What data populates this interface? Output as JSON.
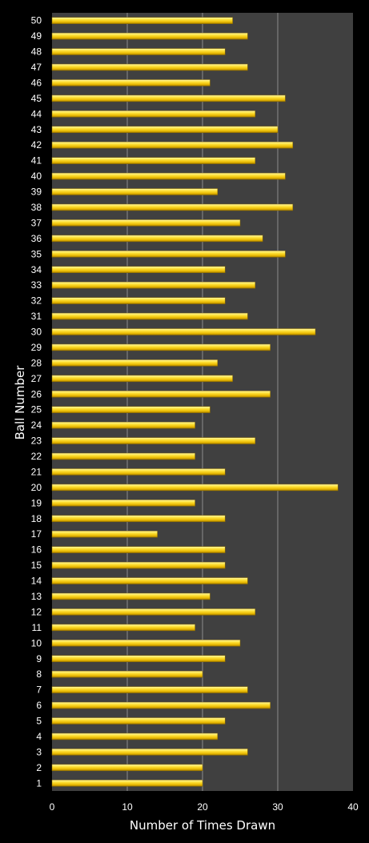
{
  "chart_data": {
    "type": "bar",
    "orientation": "horizontal",
    "title": "",
    "xlabel": "Number of Times Drawn",
    "ylabel": "Ball Number",
    "xlim": [
      0,
      40
    ],
    "x_ticks": [
      "0",
      "10",
      "20",
      "30",
      "40"
    ],
    "grid": "vertical",
    "colors": {
      "background": "#000000",
      "plot_area": "#404040",
      "bar": "#f2c200",
      "bar_highlight": "#fff27a",
      "grid": "#8c8c8c",
      "text": "#ffffff"
    },
    "categories": [
      "1",
      "2",
      "3",
      "4",
      "5",
      "6",
      "7",
      "8",
      "9",
      "10",
      "11",
      "12",
      "13",
      "14",
      "15",
      "16",
      "17",
      "18",
      "19",
      "20",
      "21",
      "22",
      "23",
      "24",
      "25",
      "26",
      "27",
      "28",
      "29",
      "30",
      "31",
      "32",
      "33",
      "34",
      "35",
      "36",
      "37",
      "38",
      "39",
      "40",
      "41",
      "42",
      "43",
      "44",
      "45",
      "46",
      "47",
      "48",
      "49",
      "50"
    ],
    "values": [
      20,
      20,
      26,
      22,
      23,
      29,
      26,
      20,
      23,
      25,
      19,
      27,
      21,
      26,
      23,
      23,
      14,
      23,
      19,
      38,
      23,
      19,
      27,
      19,
      21,
      29,
      24,
      22,
      29,
      35,
      26,
      23,
      27,
      23,
      31,
      28,
      25,
      32,
      22,
      31,
      27,
      32,
      30,
      27,
      31,
      21,
      26,
      23,
      26,
      24
    ]
  }
}
